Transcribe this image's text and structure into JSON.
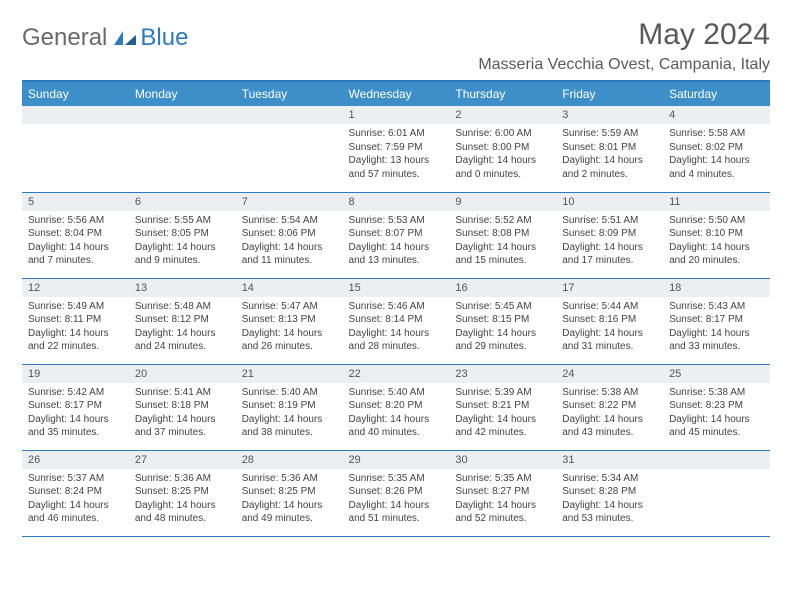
{
  "logo": {
    "general": "General",
    "blue": "Blue"
  },
  "title": "May 2024",
  "location": "Masseria Vecchia Ovest, Campania, Italy",
  "colors": {
    "header_bg": "#3d8fc9",
    "header_border": "#2f7abf",
    "daynum_bg": "#eceff1",
    "logo_blue": "#2f7abf",
    "logo_gray": "#6a6a6a"
  },
  "weekdays": [
    "Sunday",
    "Monday",
    "Tuesday",
    "Wednesday",
    "Thursday",
    "Friday",
    "Saturday"
  ],
  "weeks": [
    [
      null,
      null,
      null,
      {
        "n": "1",
        "sr": "6:01 AM",
        "ss": "7:59 PM",
        "dl": "13 hours and 57 minutes."
      },
      {
        "n": "2",
        "sr": "6:00 AM",
        "ss": "8:00 PM",
        "dl": "14 hours and 0 minutes."
      },
      {
        "n": "3",
        "sr": "5:59 AM",
        "ss": "8:01 PM",
        "dl": "14 hours and 2 minutes."
      },
      {
        "n": "4",
        "sr": "5:58 AM",
        "ss": "8:02 PM",
        "dl": "14 hours and 4 minutes."
      }
    ],
    [
      {
        "n": "5",
        "sr": "5:56 AM",
        "ss": "8:04 PM",
        "dl": "14 hours and 7 minutes."
      },
      {
        "n": "6",
        "sr": "5:55 AM",
        "ss": "8:05 PM",
        "dl": "14 hours and 9 minutes."
      },
      {
        "n": "7",
        "sr": "5:54 AM",
        "ss": "8:06 PM",
        "dl": "14 hours and 11 minutes."
      },
      {
        "n": "8",
        "sr": "5:53 AM",
        "ss": "8:07 PM",
        "dl": "14 hours and 13 minutes."
      },
      {
        "n": "9",
        "sr": "5:52 AM",
        "ss": "8:08 PM",
        "dl": "14 hours and 15 minutes."
      },
      {
        "n": "10",
        "sr": "5:51 AM",
        "ss": "8:09 PM",
        "dl": "14 hours and 17 minutes."
      },
      {
        "n": "11",
        "sr": "5:50 AM",
        "ss": "8:10 PM",
        "dl": "14 hours and 20 minutes."
      }
    ],
    [
      {
        "n": "12",
        "sr": "5:49 AM",
        "ss": "8:11 PM",
        "dl": "14 hours and 22 minutes."
      },
      {
        "n": "13",
        "sr": "5:48 AM",
        "ss": "8:12 PM",
        "dl": "14 hours and 24 minutes."
      },
      {
        "n": "14",
        "sr": "5:47 AM",
        "ss": "8:13 PM",
        "dl": "14 hours and 26 minutes."
      },
      {
        "n": "15",
        "sr": "5:46 AM",
        "ss": "8:14 PM",
        "dl": "14 hours and 28 minutes."
      },
      {
        "n": "16",
        "sr": "5:45 AM",
        "ss": "8:15 PM",
        "dl": "14 hours and 29 minutes."
      },
      {
        "n": "17",
        "sr": "5:44 AM",
        "ss": "8:16 PM",
        "dl": "14 hours and 31 minutes."
      },
      {
        "n": "18",
        "sr": "5:43 AM",
        "ss": "8:17 PM",
        "dl": "14 hours and 33 minutes."
      }
    ],
    [
      {
        "n": "19",
        "sr": "5:42 AM",
        "ss": "8:17 PM",
        "dl": "14 hours and 35 minutes."
      },
      {
        "n": "20",
        "sr": "5:41 AM",
        "ss": "8:18 PM",
        "dl": "14 hours and 37 minutes."
      },
      {
        "n": "21",
        "sr": "5:40 AM",
        "ss": "8:19 PM",
        "dl": "14 hours and 38 minutes."
      },
      {
        "n": "22",
        "sr": "5:40 AM",
        "ss": "8:20 PM",
        "dl": "14 hours and 40 minutes."
      },
      {
        "n": "23",
        "sr": "5:39 AM",
        "ss": "8:21 PM",
        "dl": "14 hours and 42 minutes."
      },
      {
        "n": "24",
        "sr": "5:38 AM",
        "ss": "8:22 PM",
        "dl": "14 hours and 43 minutes."
      },
      {
        "n": "25",
        "sr": "5:38 AM",
        "ss": "8:23 PM",
        "dl": "14 hours and 45 minutes."
      }
    ],
    [
      {
        "n": "26",
        "sr": "5:37 AM",
        "ss": "8:24 PM",
        "dl": "14 hours and 46 minutes."
      },
      {
        "n": "27",
        "sr": "5:36 AM",
        "ss": "8:25 PM",
        "dl": "14 hours and 48 minutes."
      },
      {
        "n": "28",
        "sr": "5:36 AM",
        "ss": "8:25 PM",
        "dl": "14 hours and 49 minutes."
      },
      {
        "n": "29",
        "sr": "5:35 AM",
        "ss": "8:26 PM",
        "dl": "14 hours and 51 minutes."
      },
      {
        "n": "30",
        "sr": "5:35 AM",
        "ss": "8:27 PM",
        "dl": "14 hours and 52 minutes."
      },
      {
        "n": "31",
        "sr": "5:34 AM",
        "ss": "8:28 PM",
        "dl": "14 hours and 53 minutes."
      },
      null
    ]
  ],
  "labels": {
    "sunrise": "Sunrise: ",
    "sunset": "Sunset: ",
    "daylight": "Daylight: "
  }
}
